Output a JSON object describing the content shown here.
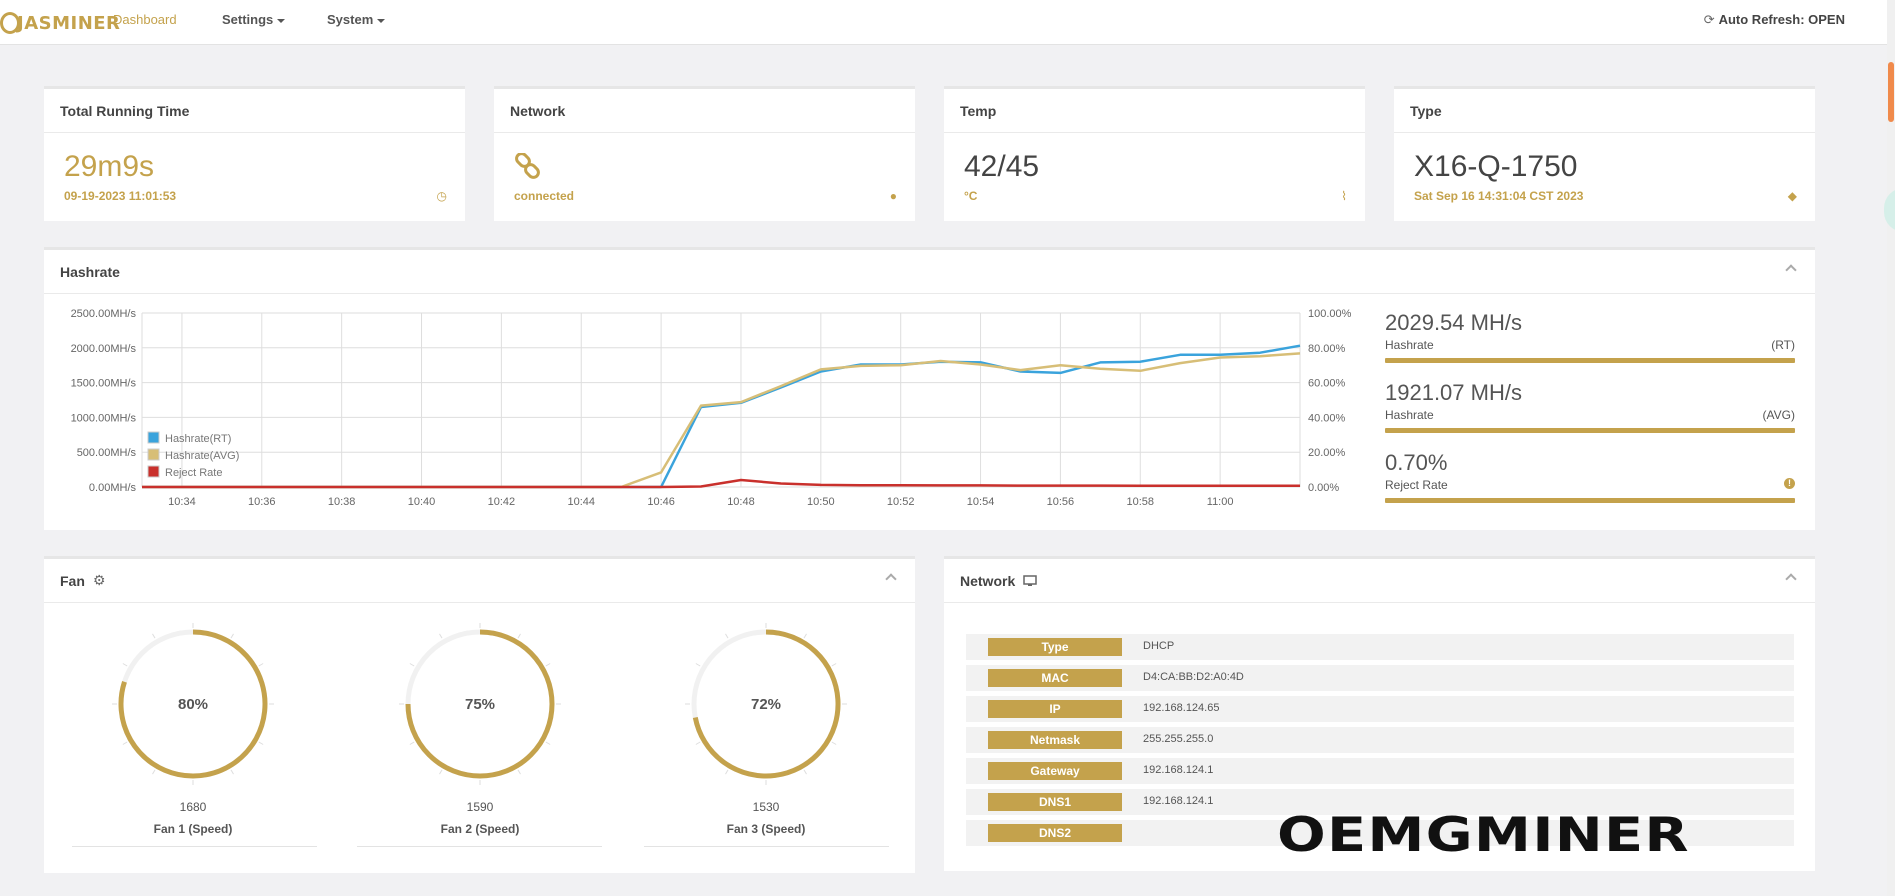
{
  "brand": {
    "logo_text": "JASMINER",
    "accent": "#c4a24c"
  },
  "nav": {
    "dashboard": "Dashboard",
    "settings": "Settings",
    "system": "System",
    "auto_refresh": "Auto Refresh: OPEN"
  },
  "cards": {
    "running": {
      "title": "Total Running Time",
      "value": "29m9s",
      "sub": "09-19-2023 11:01:53",
      "icon": "clock-icon"
    },
    "network": {
      "title": "Network",
      "sub": "connected",
      "icon": "globe-icon"
    },
    "temp": {
      "title": "Temp",
      "value": "42/45",
      "sub": "°C",
      "icon": "thermometer-icon"
    },
    "type": {
      "title": "Type",
      "value": "X16-Q-1750",
      "sub": "Sat Sep 16 14:31:04 CST 2023",
      "icon": "tags-icon"
    }
  },
  "hashrate": {
    "title": "Hashrate",
    "stats": [
      {
        "value": "2029.54 MH/s",
        "label": "Hashrate",
        "tag": "(RT)"
      },
      {
        "value": "1921.07 MH/s",
        "label": "Hashrate",
        "tag": "(AVG)"
      },
      {
        "value": "0.70%",
        "label": "Reject Rate",
        "tag": "!"
      }
    ]
  },
  "chart_data": {
    "type": "line",
    "title": "Hashrate",
    "categories": [
      "10:34",
      "10:36",
      "10:38",
      "10:40",
      "10:42",
      "10:44",
      "10:46",
      "10:48",
      "10:50",
      "10:52",
      "10:54",
      "10:56",
      "10:58",
      "11:00"
    ],
    "y_left": {
      "ticks": [
        "0.00MH/s",
        "500.00MH/s",
        "1000.00MH/s",
        "1500.00MH/s",
        "2000.00MH/s",
        "2500.00MH/s"
      ],
      "range": [
        0,
        2500
      ]
    },
    "y_right": {
      "ticks": [
        "0.00%",
        "20.00%",
        "40.00%",
        "60.00%",
        "80.00%",
        "100.00%"
      ],
      "range": [
        0,
        100
      ]
    },
    "x": [
      "10:33",
      "10:34",
      "10:35",
      "10:36",
      "10:37",
      "10:38",
      "10:39",
      "10:40",
      "10:41",
      "10:42",
      "10:43",
      "10:44",
      "10:45",
      "10:46",
      "10:47",
      "10:48",
      "10:49",
      "10:50",
      "10:51",
      "10:52",
      "10:53",
      "10:54",
      "10:55",
      "10:56",
      "10:57",
      "10:58",
      "10:59",
      "11:00",
      "11:01",
      "11:02"
    ],
    "series": [
      {
        "name": "Hashrate(RT)",
        "color": "#3aa3dc",
        "axis": "left",
        "values": [
          0,
          0,
          0,
          0,
          0,
          0,
          0,
          0,
          0,
          0,
          0,
          0,
          0,
          0,
          1150,
          1210,
          1430,
          1660,
          1760,
          1760,
          1800,
          1790,
          1660,
          1640,
          1790,
          1800,
          1900,
          1900,
          1930,
          2030
        ]
      },
      {
        "name": "Hashrate(AVG)",
        "color": "#d7be77",
        "axis": "left",
        "values": [
          0,
          0,
          0,
          0,
          0,
          0,
          0,
          0,
          0,
          0,
          0,
          0,
          0,
          210,
          1170,
          1220,
          1450,
          1690,
          1740,
          1750,
          1810,
          1760,
          1680,
          1750,
          1700,
          1670,
          1780,
          1860,
          1880,
          1920
        ]
      },
      {
        "name": "Reject Rate",
        "color": "#c9302c",
        "axis": "right",
        "values": [
          0,
          0,
          0,
          0,
          0,
          0,
          0,
          0,
          0,
          0,
          0,
          0,
          0,
          0,
          0.3,
          4.0,
          2.0,
          1.2,
          1.0,
          1.0,
          0.9,
          0.9,
          0.8,
          0.8,
          0.8,
          0.7,
          0.7,
          0.7,
          0.7,
          0.7
        ]
      }
    ],
    "legend": "bottom-left inside",
    "grid": true
  },
  "fan": {
    "title": "Fan",
    "fans": [
      {
        "percent": "80%",
        "value": 80,
        "speed": "1680",
        "label": "Fan 1 (Speed)"
      },
      {
        "percent": "75%",
        "value": 75,
        "speed": "1590",
        "label": "Fan 2 (Speed)"
      },
      {
        "percent": "72%",
        "value": 72,
        "speed": "1530",
        "label": "Fan 3 (Speed)"
      }
    ]
  },
  "network_panel": {
    "title": "Network",
    "rows": [
      {
        "key": "Type",
        "value": "DHCP"
      },
      {
        "key": "MAC",
        "value": "D4:CA:BB:D2:A0:4D"
      },
      {
        "key": "IP",
        "value": "192.168.124.65"
      },
      {
        "key": "Netmask",
        "value": "255.255.255.0"
      },
      {
        "key": "Gateway",
        "value": "192.168.124.1"
      },
      {
        "key": "DNS1",
        "value": "192.168.124.1"
      },
      {
        "key": "DNS2",
        "value": ""
      }
    ]
  },
  "watermark": "OEMGMINER"
}
